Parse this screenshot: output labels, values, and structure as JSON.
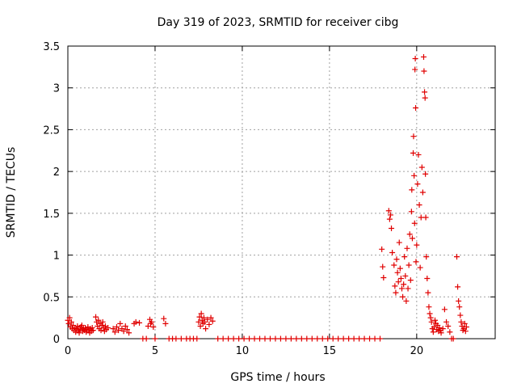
{
  "chart_data": {
    "type": "scatter",
    "title": "Day 319 of 2023, SRMTID for receiver cibg",
    "xlabel": "GPS time / hours",
    "ylabel": "SRMTID / TECUs",
    "xlim": [
      0,
      24.5
    ],
    "ylim": [
      0,
      3.5
    ],
    "xticks": [
      0,
      5,
      10,
      15,
      20
    ],
    "xtick_labels": [
      "0",
      "5",
      "10",
      "15",
      "20"
    ],
    "yticks": [
      0,
      0.5,
      1,
      1.5,
      2,
      2.5,
      3,
      3.5
    ],
    "ytick_labels": [
      "0",
      "0.5",
      "1",
      "1.5",
      "2",
      "2.5",
      "3",
      "3.5"
    ],
    "grid": true,
    "marker": "+",
    "color": "#e00000",
    "series": [
      {
        "name": "SRMTID",
        "points": [
          [
            0.0,
            0.22
          ],
          [
            0.05,
            0.18
          ],
          [
            0.1,
            0.25
          ],
          [
            0.15,
            0.14
          ],
          [
            0.2,
            0.2
          ],
          [
            0.25,
            0.12
          ],
          [
            0.3,
            0.16
          ],
          [
            0.35,
            0.1
          ],
          [
            0.4,
            0.13
          ],
          [
            0.45,
            0.08
          ],
          [
            0.5,
            0.12
          ],
          [
            0.55,
            0.15
          ],
          [
            0.6,
            0.1
          ],
          [
            0.65,
            0.07
          ],
          [
            0.7,
            0.11
          ],
          [
            0.75,
            0.14
          ],
          [
            0.8,
            0.16
          ],
          [
            0.85,
            0.09
          ],
          [
            0.9,
            0.12
          ],
          [
            0.95,
            0.1
          ],
          [
            1.0,
            0.13
          ],
          [
            1.05,
            0.08
          ],
          [
            1.1,
            0.11
          ],
          [
            1.15,
            0.14
          ],
          [
            1.2,
            0.1
          ],
          [
            1.25,
            0.07
          ],
          [
            1.3,
            0.12
          ],
          [
            1.35,
            0.09
          ],
          [
            1.4,
            0.13
          ],
          [
            1.45,
            0.1
          ],
          [
            1.6,
            0.26
          ],
          [
            1.65,
            0.2
          ],
          [
            1.7,
            0.15
          ],
          [
            1.75,
            0.22
          ],
          [
            1.8,
            0.12
          ],
          [
            1.85,
            0.18
          ],
          [
            1.9,
            0.1
          ],
          [
            1.95,
            0.16
          ],
          [
            2.0,
            0.2
          ],
          [
            2.05,
            0.13
          ],
          [
            2.1,
            0.09
          ],
          [
            2.15,
            0.15
          ],
          [
            2.2,
            0.11
          ],
          [
            2.3,
            0.13
          ],
          [
            2.6,
            0.12
          ],
          [
            2.7,
            0.08
          ],
          [
            2.8,
            0.14
          ],
          [
            2.9,
            0.1
          ],
          [
            3.0,
            0.18
          ],
          [
            3.1,
            0.12
          ],
          [
            3.2,
            0.09
          ],
          [
            3.3,
            0.15
          ],
          [
            3.4,
            0.11
          ],
          [
            3.5,
            0.07
          ],
          [
            3.8,
            0.18
          ],
          [
            3.9,
            0.2
          ],
          [
            4.1,
            0.19
          ],
          [
            4.3,
            0.0
          ],
          [
            4.5,
            0.0
          ],
          [
            4.6,
            0.15
          ],
          [
            4.7,
            0.23
          ],
          [
            4.75,
            0.18
          ],
          [
            4.8,
            0.2
          ],
          [
            4.9,
            0.14
          ],
          [
            5.0,
            0.0
          ],
          [
            5.5,
            0.24
          ],
          [
            5.6,
            0.18
          ],
          [
            5.8,
            0.0
          ],
          [
            6.0,
            0.0
          ],
          [
            6.2,
            0.0
          ],
          [
            6.5,
            0.0
          ],
          [
            6.8,
            0.0
          ],
          [
            7.0,
            0.0
          ],
          [
            7.2,
            0.0
          ],
          [
            7.4,
            0.0
          ],
          [
            7.5,
            0.2
          ],
          [
            7.55,
            0.26
          ],
          [
            7.6,
            0.15
          ],
          [
            7.65,
            0.3
          ],
          [
            7.7,
            0.22
          ],
          [
            7.75,
            0.18
          ],
          [
            7.8,
            0.25
          ],
          [
            7.85,
            0.2
          ],
          [
            7.9,
            0.12
          ],
          [
            8.0,
            0.23
          ],
          [
            8.1,
            0.17
          ],
          [
            8.2,
            0.25
          ],
          [
            8.3,
            0.21
          ],
          [
            8.6,
            0.0
          ],
          [
            8.9,
            0.0
          ],
          [
            9.2,
            0.0
          ],
          [
            9.5,
            0.0
          ],
          [
            9.8,
            0.0
          ],
          [
            10.1,
            0.0
          ],
          [
            10.4,
            0.0
          ],
          [
            10.7,
            0.0
          ],
          [
            11.0,
            0.0
          ],
          [
            11.3,
            0.0
          ],
          [
            11.6,
            0.0
          ],
          [
            11.9,
            0.0
          ],
          [
            12.2,
            0.0
          ],
          [
            12.5,
            0.0
          ],
          [
            12.8,
            0.0
          ],
          [
            13.1,
            0.0
          ],
          [
            13.4,
            0.0
          ],
          [
            13.7,
            0.0
          ],
          [
            14.0,
            0.0
          ],
          [
            14.3,
            0.0
          ],
          [
            14.6,
            0.0
          ],
          [
            14.9,
            0.0
          ],
          [
            15.2,
            0.0
          ],
          [
            15.5,
            0.0
          ],
          [
            15.8,
            0.0
          ],
          [
            16.1,
            0.0
          ],
          [
            16.4,
            0.0
          ],
          [
            16.7,
            0.0
          ],
          [
            17.0,
            0.0
          ],
          [
            17.3,
            0.0
          ],
          [
            17.6,
            0.0
          ],
          [
            17.9,
            0.0
          ],
          [
            18.0,
            1.07
          ],
          [
            18.05,
            0.86
          ],
          [
            18.1,
            0.73
          ],
          [
            18.4,
            1.53
          ],
          [
            18.45,
            1.43
          ],
          [
            18.5,
            1.48
          ],
          [
            18.55,
            1.32
          ],
          [
            18.6,
            1.03
          ],
          [
            18.7,
            0.88
          ],
          [
            18.75,
            0.63
          ],
          [
            18.8,
            0.55
          ],
          [
            18.85,
            0.95
          ],
          [
            18.9,
            0.79
          ],
          [
            18.95,
            0.68
          ],
          [
            19.0,
            1.15
          ],
          [
            19.05,
            0.84
          ],
          [
            19.1,
            0.72
          ],
          [
            19.15,
            0.6
          ],
          [
            19.2,
            0.5
          ],
          [
            19.25,
            0.65
          ],
          [
            19.3,
            0.98
          ],
          [
            19.35,
            0.75
          ],
          [
            19.4,
            0.45
          ],
          [
            19.45,
            1.08
          ],
          [
            19.5,
            0.6
          ],
          [
            19.55,
            0.88
          ],
          [
            19.6,
            1.25
          ],
          [
            19.65,
            0.7
          ],
          [
            19.7,
            1.52
          ],
          [
            19.72,
            1.78
          ],
          [
            19.75,
            1.2
          ],
          [
            19.8,
            2.22
          ],
          [
            19.82,
            2.42
          ],
          [
            19.85,
            1.95
          ],
          [
            19.88,
            1.38
          ],
          [
            19.9,
            3.22
          ],
          [
            19.92,
            3.35
          ],
          [
            19.94,
            2.76
          ],
          [
            19.96,
            0.92
          ],
          [
            20.0,
            1.12
          ],
          [
            20.05,
            1.85
          ],
          [
            20.1,
            2.2
          ],
          [
            20.15,
            1.6
          ],
          [
            20.2,
            0.85
          ],
          [
            20.25,
            1.45
          ],
          [
            20.3,
            2.05
          ],
          [
            20.35,
            1.75
          ],
          [
            20.4,
            3.37
          ],
          [
            20.42,
            3.2
          ],
          [
            20.45,
            2.95
          ],
          [
            20.48,
            2.88
          ],
          [
            20.5,
            1.97
          ],
          [
            20.52,
            1.45
          ],
          [
            20.55,
            0.98
          ],
          [
            20.6,
            0.72
          ],
          [
            20.65,
            0.55
          ],
          [
            20.7,
            0.38
          ],
          [
            20.75,
            0.3
          ],
          [
            20.8,
            0.25
          ],
          [
            20.85,
            0.2
          ],
          [
            20.9,
            0.12
          ],
          [
            20.95,
            0.08
          ],
          [
            21.0,
            0.14
          ],
          [
            21.05,
            0.22
          ],
          [
            21.1,
            0.18
          ],
          [
            21.15,
            0.11
          ],
          [
            21.2,
            0.16
          ],
          [
            21.25,
            0.09
          ],
          [
            21.3,
            0.13
          ],
          [
            21.35,
            0.1
          ],
          [
            21.4,
            0.07
          ],
          [
            21.5,
            0.12
          ],
          [
            21.6,
            0.35
          ],
          [
            21.7,
            0.2
          ],
          [
            21.8,
            0.15
          ],
          [
            21.9,
            0.08
          ],
          [
            22.0,
            0.0
          ],
          [
            22.1,
            0.0
          ],
          [
            22.3,
            0.98
          ],
          [
            22.35,
            0.62
          ],
          [
            22.4,
            0.45
          ],
          [
            22.45,
            0.38
          ],
          [
            22.5,
            0.28
          ],
          [
            22.55,
            0.2
          ],
          [
            22.6,
            0.15
          ],
          [
            22.65,
            0.1
          ],
          [
            22.7,
            0.12
          ],
          [
            22.75,
            0.18
          ],
          [
            22.8,
            0.09
          ],
          [
            22.85,
            0.14
          ]
        ]
      }
    ]
  }
}
